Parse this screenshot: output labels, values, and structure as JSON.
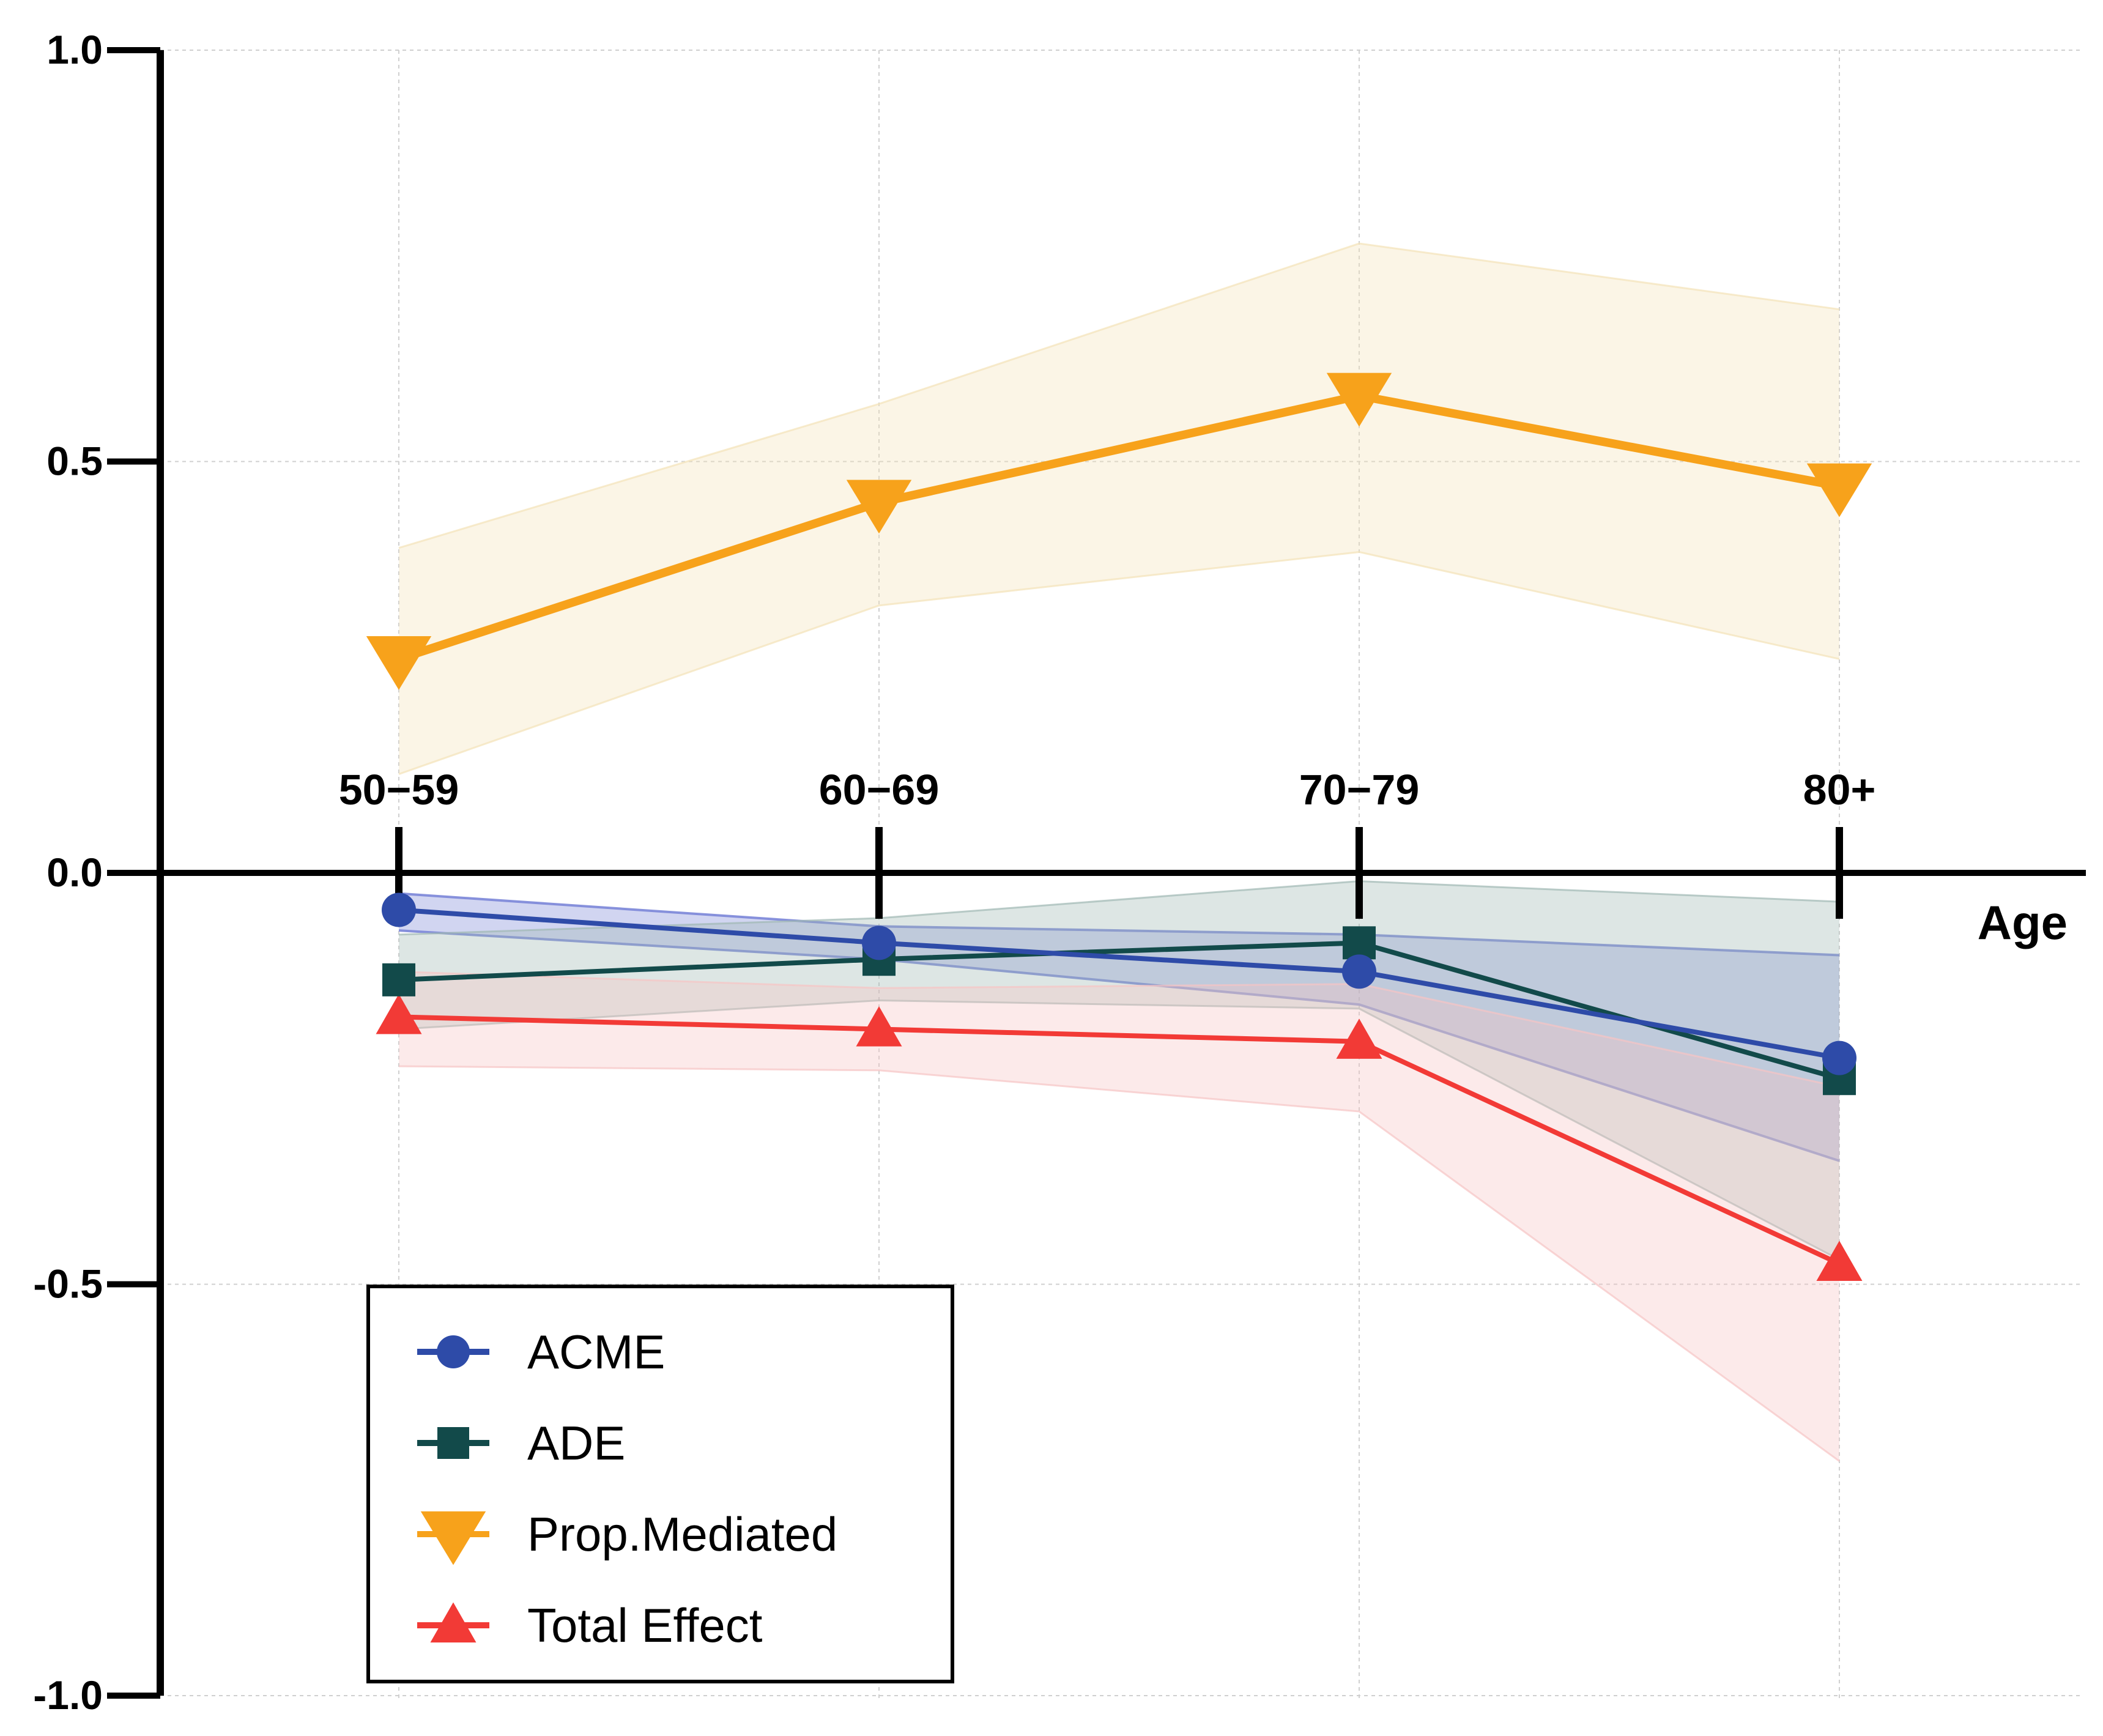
{
  "chart_data": {
    "type": "line",
    "xlabel": "Age",
    "ylabel": "",
    "categories": [
      "50−59",
      "60−69",
      "70−79",
      "80+"
    ],
    "ylim": [
      -1.0,
      1.0
    ],
    "yticks": [
      1.0,
      0.5,
      0.0,
      -0.5,
      -1.0
    ],
    "ytick_labels": [
      "1.0",
      "0.5",
      "0.0",
      "-0.5",
      "-1.0"
    ],
    "grid": true,
    "legend_position": "bottom-left",
    "series": [
      {
        "name": "ACME",
        "marker": "circle",
        "color": "#2E4BA8",
        "band_color": "#7B86D8",
        "values": [
          -0.045,
          -0.085,
          -0.12,
          -0.225
        ],
        "lower": [
          -0.07,
          -0.105,
          -0.16,
          -0.35
        ],
        "upper": [
          -0.025,
          -0.065,
          -0.075,
          -0.1
        ]
      },
      {
        "name": "ADE",
        "marker": "square",
        "color": "#124A4A",
        "band_color": "#9FB8B3",
        "values": [
          -0.13,
          -0.105,
          -0.085,
          -0.25
        ],
        "lower": [
          -0.19,
          -0.155,
          -0.165,
          -0.47
        ],
        "upper": [
          -0.075,
          -0.055,
          -0.01,
          -0.035
        ]
      },
      {
        "name": "Prop.Mediated",
        "marker": "triangle-down",
        "color": "#F7A21B",
        "band_color": "#F3E2B8",
        "values": [
          0.26,
          0.45,
          0.58,
          0.47
        ],
        "lower": [
          0.12,
          0.325,
          0.39,
          0.26
        ],
        "upper": [
          0.395,
          0.57,
          0.765,
          0.685
        ]
      },
      {
        "name": "Total Effect",
        "marker": "triangle-up",
        "color": "#F23A36",
        "band_color": "#F7C4C4",
        "values": [
          -0.175,
          -0.19,
          -0.205,
          -0.475
        ],
        "lower": [
          -0.235,
          -0.24,
          -0.29,
          -0.715
        ],
        "upper": [
          -0.12,
          -0.14,
          -0.135,
          -0.26
        ]
      }
    ]
  }
}
